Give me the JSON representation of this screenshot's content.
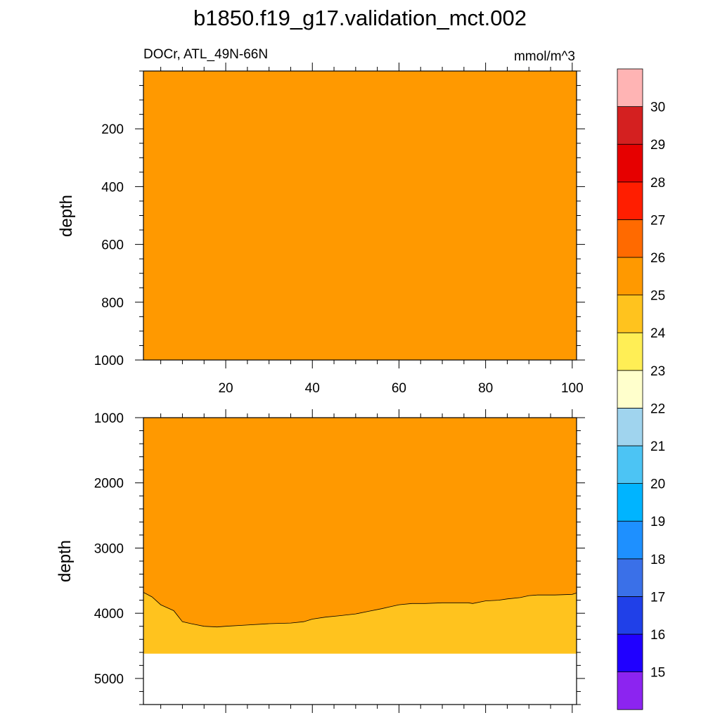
{
  "title": "b1850.f19_g17.validation_mct.002",
  "chart_data": {
    "type": "contour",
    "title": "b1850.f19_g17.validation_mct.002",
    "subtitle_left": "DOCr, ATL_49N-66N",
    "units": "mmol/m^3",
    "ylabel": "depth",
    "y_reversed": true,
    "x_range": [
      1,
      101
    ],
    "top_panel": {
      "ylim": [
        1000,
        0
      ],
      "y_ticks": [
        "200",
        "400",
        "600",
        "800",
        "1000"
      ],
      "x_ticks": [
        "20",
        "40",
        "60",
        "80",
        "100"
      ],
      "fill_level": "25-26"
    },
    "bottom_panel": {
      "ylim": [
        5400,
        1000
      ],
      "y_ticks": [
        "1000",
        "2000",
        "3000",
        "4000",
        "5000"
      ],
      "upper_fill_level": "25-26",
      "lower_fill_level": "24-25",
      "data_bottom_depth": 4620,
      "boundary_25": {
        "x": [
          1,
          3,
          5,
          8,
          10,
          12,
          15,
          18,
          20,
          25,
          30,
          35,
          38,
          40,
          43,
          46,
          50,
          53,
          56,
          58,
          60,
          63,
          66,
          70,
          73,
          76,
          77,
          80,
          83,
          85,
          88,
          90,
          92,
          96,
          100,
          101
        ],
        "depth": [
          3680,
          3750,
          3870,
          3960,
          4130,
          4160,
          4200,
          4210,
          4200,
          4180,
          4160,
          4150,
          4130,
          4090,
          4060,
          4040,
          4010,
          3970,
          3930,
          3900,
          3870,
          3850,
          3850,
          3840,
          3840,
          3840,
          3850,
          3810,
          3800,
          3780,
          3760,
          3730,
          3720,
          3720,
          3710,
          3690
        ]
      }
    },
    "colorbar": {
      "labels": [
        "15",
        "16",
        "17",
        "18",
        "19",
        "20",
        "21",
        "22",
        "23",
        "24",
        "25",
        "26",
        "27",
        "28",
        "29",
        "30"
      ],
      "colors": [
        "#8C24F0",
        "#2000FF",
        "#2040E8",
        "#3A70E8",
        "#1E90FF",
        "#00B4FF",
        "#4CC4F4",
        "#A0D4EE",
        "#FFFFCC",
        "#FFEE55",
        "#FFC31E",
        "#FF9900",
        "#FF6A00",
        "#FF1E00",
        "#E60000",
        "#D42020",
        "#FFB4B4"
      ]
    }
  }
}
